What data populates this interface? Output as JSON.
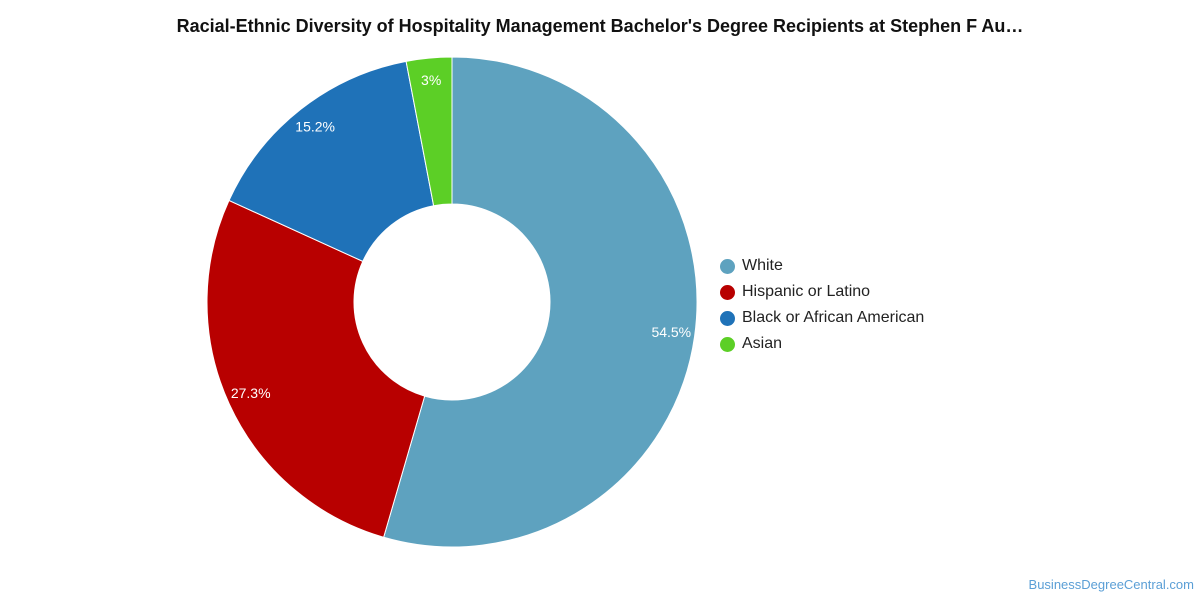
{
  "chart_data": {
    "type": "pie",
    "variant": "donut",
    "title": "Racial-Ethnic Diversity of Hospitality Management Bachelor's Degree Recipients at Stephen F Au…",
    "categories": [
      "White",
      "Hispanic or Latino",
      "Black or African American",
      "Asian"
    ],
    "values": [
      54.5,
      27.3,
      15.2,
      3.0
    ],
    "labels": [
      "54.5%",
      "27.3%",
      "15.2%",
      "3%"
    ],
    "colors": [
      "#5ea2bf",
      "#b80000",
      "#1f72b8",
      "#5ccf26"
    ],
    "legend_position": "right"
  },
  "watermark": "BusinessDegreeCentral.com"
}
